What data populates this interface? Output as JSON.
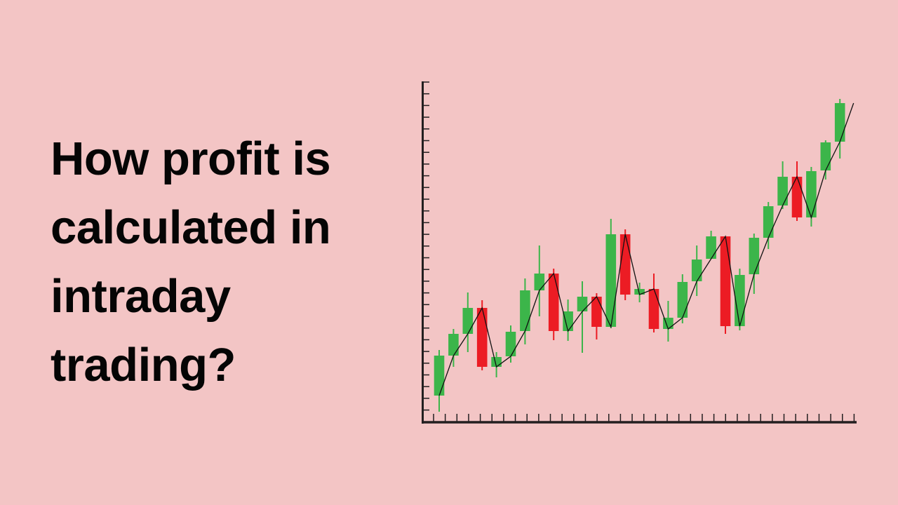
{
  "headline": {
    "lines": [
      "How profit is",
      "calculated in",
      "intraday",
      "trading?"
    ]
  },
  "colors": {
    "background": "#f3c5c5",
    "up": "#3cb54a",
    "down": "#ec1c24",
    "axis": "#231f20",
    "line": "#111111"
  },
  "chart_data": {
    "type": "candlestick",
    "title": "",
    "xlabel": "",
    "ylabel": "",
    "tick_labels": false,
    "grid": false,
    "overlay": "line through candle opens",
    "candles": [
      {
        "o": 3.8,
        "h": 10.3,
        "l": 1.5,
        "c": 9.5
      },
      {
        "o": 9.5,
        "h": 13.3,
        "l": 7.9,
        "c": 12.6
      },
      {
        "o": 12.6,
        "h": 18.5,
        "l": 10.0,
        "c": 16.3
      },
      {
        "o": 16.3,
        "h": 17.4,
        "l": 7.4,
        "c": 7.9
      },
      {
        "o": 7.9,
        "h": 10.0,
        "l": 6.4,
        "c": 9.3
      },
      {
        "o": 9.4,
        "h": 13.8,
        "l": 8.5,
        "c": 12.9
      },
      {
        "o": 13.0,
        "h": 20.5,
        "l": 11.1,
        "c": 18.8
      },
      {
        "o": 18.8,
        "h": 25.2,
        "l": 15.1,
        "c": 21.2
      },
      {
        "o": 21.2,
        "h": 21.9,
        "l": 11.7,
        "c": 13.0
      },
      {
        "o": 13.0,
        "h": 17.5,
        "l": 11.6,
        "c": 15.8
      },
      {
        "o": 15.8,
        "h": 20.1,
        "l": 9.9,
        "c": 17.9
      },
      {
        "o": 17.9,
        "h": 18.4,
        "l": 11.8,
        "c": 13.6
      },
      {
        "o": 13.6,
        "h": 29.0,
        "l": 13.4,
        "c": 26.8
      },
      {
        "o": 26.8,
        "h": 27.5,
        "l": 17.4,
        "c": 18.2
      },
      {
        "o": 18.2,
        "h": 19.9,
        "l": 17.1,
        "c": 19.0
      },
      {
        "o": 19.0,
        "h": 21.2,
        "l": 12.8,
        "c": 13.3
      },
      {
        "o": 13.3,
        "h": 17.3,
        "l": 11.5,
        "c": 14.9
      },
      {
        "o": 14.9,
        "h": 21.1,
        "l": 14.1,
        "c": 20.0
      },
      {
        "o": 20.1,
        "h": 25.2,
        "l": 18.0,
        "c": 23.2
      },
      {
        "o": 23.3,
        "h": 27.3,
        "l": 23.3,
        "c": 26.5
      },
      {
        "o": 26.5,
        "h": 26.5,
        "l": 12.6,
        "c": 13.7
      },
      {
        "o": 13.7,
        "h": 21.9,
        "l": 13.1,
        "c": 21.0
      },
      {
        "o": 21.1,
        "h": 26.9,
        "l": 18.3,
        "c": 26.3
      },
      {
        "o": 26.3,
        "h": 31.4,
        "l": 24.7,
        "c": 30.8
      },
      {
        "o": 30.9,
        "h": 37.2,
        "l": 30.4,
        "c": 35.0
      },
      {
        "o": 35.0,
        "h": 37.2,
        "l": 28.7,
        "c": 29.2
      },
      {
        "o": 29.2,
        "h": 36.4,
        "l": 27.9,
        "c": 35.8
      },
      {
        "o": 35.9,
        "h": 40.2,
        "l": 34.6,
        "c": 39.9
      },
      {
        "o": 40.0,
        "h": 46.1,
        "l": 37.6,
        "c": 45.5
      }
    ],
    "line_end": 45.5,
    "ylim": [
      0,
      48.5
    ]
  }
}
